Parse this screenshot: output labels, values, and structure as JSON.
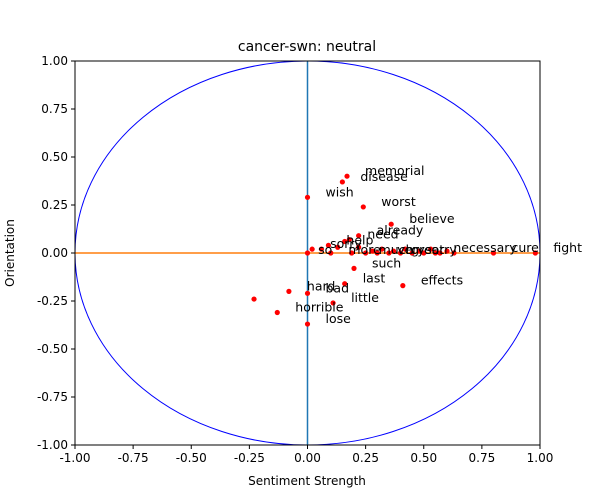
{
  "chart_data": {
    "type": "scatter",
    "title": "cancer-swn: neutral",
    "xlabel": "Sentiment Strength",
    "ylabel": "Orientation",
    "xlim": [
      -1.0,
      1.0
    ],
    "ylim": [
      -1.0,
      1.0
    ],
    "xticks": [
      "-1.00",
      "-0.75",
      "-0.50",
      "-0.25",
      "0.00",
      "0.25",
      "0.50",
      "0.75",
      "1.00"
    ],
    "yticks": [
      "-1.00",
      "-0.75",
      "-0.50",
      "-0.25",
      "0.00",
      "0.25",
      "0.50",
      "0.75",
      "1.00"
    ],
    "grid": false,
    "colors": {
      "points": "#ff0000",
      "circle": "#0000ff",
      "horizontal_line": "#ff7f0e",
      "vertical_line": "#1f77b4"
    },
    "labeled_points": [
      {
        "label": "memorial",
        "x": 0.17,
        "y": 0.4
      },
      {
        "label": "disease",
        "x": 0.15,
        "y": 0.37
      },
      {
        "label": "wish",
        "x": 0.0,
        "y": 0.29
      },
      {
        "label": "worst",
        "x": 0.24,
        "y": 0.24
      },
      {
        "label": "believe",
        "x": 0.36,
        "y": 0.15
      },
      {
        "label": "already",
        "x": 0.22,
        "y": 0.09
      },
      {
        "label": "need",
        "x": 0.18,
        "y": 0.07
      },
      {
        "label": "help",
        "x": 0.09,
        "y": 0.04
      },
      {
        "label": "sorry",
        "x": 0.02,
        "y": 0.02
      },
      {
        "label": "such",
        "x": 0.2,
        "y": -0.08
      },
      {
        "label": "last",
        "x": 0.16,
        "y": -0.16
      },
      {
        "label": "effects",
        "x": 0.41,
        "y": -0.17
      },
      {
        "label": "bad",
        "x": 0.0,
        "y": -0.21
      },
      {
        "label": "hard",
        "x": -0.08,
        "y": -0.2
      },
      {
        "label": "little",
        "x": 0.11,
        "y": -0.26
      },
      {
        "label": "horrible",
        "x": -0.13,
        "y": -0.31
      },
      {
        "label": "lose",
        "x": 0.0,
        "y": -0.37
      },
      {
        "label": "necessary",
        "x": 0.55,
        "y": 0.0
      },
      {
        "label": "cure",
        "x": 0.8,
        "y": 0.0
      },
      {
        "label": "fight",
        "x": 0.98,
        "y": 0.0
      }
    ],
    "unlabeled_points": [
      {
        "x": -0.23,
        "y": -0.24
      },
      {
        "x": 0.0,
        "y": 0.0
      },
      {
        "x": 0.06,
        "y": 0.02
      },
      {
        "x": 0.1,
        "y": 0.0
      },
      {
        "x": 0.13,
        "y": 0.03
      },
      {
        "x": 0.16,
        "y": 0.06
      },
      {
        "x": 0.19,
        "y": 0.0
      },
      {
        "x": 0.22,
        "y": 0.03
      },
      {
        "x": 0.25,
        "y": 0.0
      },
      {
        "x": 0.28,
        "y": 0.01
      },
      {
        "x": 0.3,
        "y": 0.0
      },
      {
        "x": 0.32,
        "y": 0.02
      },
      {
        "x": 0.35,
        "y": 0.0
      },
      {
        "x": 0.37,
        "y": 0.01
      },
      {
        "x": 0.4,
        "y": 0.0
      },
      {
        "x": 0.42,
        "y": 0.02
      },
      {
        "x": 0.45,
        "y": 0.0
      },
      {
        "x": 0.48,
        "y": 0.01
      },
      {
        "x": 0.5,
        "y": 0.0
      },
      {
        "x": 0.53,
        "y": 0.02
      },
      {
        "x": 0.57,
        "y": 0.0
      },
      {
        "x": 0.6,
        "y": 0.01
      },
      {
        "x": 0.63,
        "y": 0.0
      }
    ],
    "cluster_labels": [
      {
        "label": "so",
        "x": 0.02,
        "y": 0.0
      },
      {
        "label": "more",
        "x": 0.15,
        "y": 0.0
      },
      {
        "label": "much",
        "x": 0.28,
        "y": 0.0
      },
      {
        "label": "very",
        "x": 0.36,
        "y": 0.0
      },
      {
        "label": "great",
        "x": 0.42,
        "y": 0.0
      },
      {
        "label": "sorry",
        "x": 0.48,
        "y": 0.0
      }
    ]
  }
}
